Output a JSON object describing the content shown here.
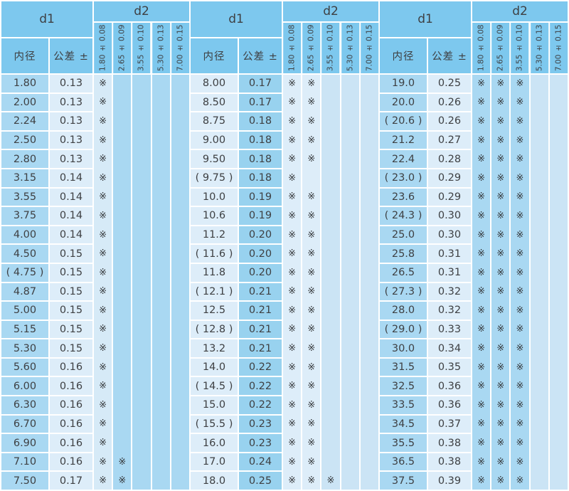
{
  "table": {
    "mark_glyph": "※",
    "header": {
      "d1": "d1",
      "d2": "d2",
      "inner_diameter": "内径",
      "tolerance": "公差 ±"
    },
    "d2_columns": [
      "1.80 ± 0.08",
      "2.65 ± 0.09",
      "3.55 ± 0.10",
      "5.30 ± 0.13",
      "7.00 ± 0.15"
    ],
    "groups": [
      {
        "stripe_shades": [
          "light",
          "medium",
          "medium",
          "medium",
          "medium"
        ],
        "rows": [
          {
            "id": "1.80",
            "tol": "0.13",
            "marks": [
              1,
              0,
              0,
              0,
              0
            ]
          },
          {
            "id": "2.00",
            "tol": "0.13",
            "marks": [
              1,
              0,
              0,
              0,
              0
            ]
          },
          {
            "id": "2.24",
            "tol": "0.13",
            "marks": [
              1,
              0,
              0,
              0,
              0
            ]
          },
          {
            "id": "2.50",
            "tol": "0.13",
            "marks": [
              1,
              0,
              0,
              0,
              0
            ]
          },
          {
            "id": "2.80",
            "tol": "0.13",
            "marks": [
              1,
              0,
              0,
              0,
              0
            ]
          },
          {
            "id": "3.15",
            "tol": "0.14",
            "marks": [
              1,
              0,
              0,
              0,
              0
            ]
          },
          {
            "id": "3.55",
            "tol": "0.14",
            "marks": [
              1,
              0,
              0,
              0,
              0
            ]
          },
          {
            "id": "3.75",
            "tol": "0.14",
            "marks": [
              1,
              0,
              0,
              0,
              0
            ]
          },
          {
            "id": "4.00",
            "tol": "0.14",
            "marks": [
              1,
              0,
              0,
              0,
              0
            ]
          },
          {
            "id": "4.50",
            "tol": "0.15",
            "marks": [
              1,
              0,
              0,
              0,
              0
            ]
          },
          {
            "id": "( 4.75 )",
            "tol": "0.15",
            "marks": [
              1,
              0,
              0,
              0,
              0
            ]
          },
          {
            "id": "4.87",
            "tol": "0.15",
            "marks": [
              1,
              0,
              0,
              0,
              0
            ]
          },
          {
            "id": "5.00",
            "tol": "0.15",
            "marks": [
              1,
              0,
              0,
              0,
              0
            ]
          },
          {
            "id": "5.15",
            "tol": "0.15",
            "marks": [
              1,
              0,
              0,
              0,
              0
            ]
          },
          {
            "id": "5.30",
            "tol": "0.15",
            "marks": [
              1,
              0,
              0,
              0,
              0
            ]
          },
          {
            "id": "5.60",
            "tol": "0.16",
            "marks": [
              1,
              0,
              0,
              0,
              0
            ]
          },
          {
            "id": "6.00",
            "tol": "0.16",
            "marks": [
              1,
              0,
              0,
              0,
              0
            ]
          },
          {
            "id": "6.30",
            "tol": "0.16",
            "marks": [
              1,
              0,
              0,
              0,
              0
            ]
          },
          {
            "id": "6.70",
            "tol": "0.16",
            "marks": [
              1,
              0,
              0,
              0,
              0
            ]
          },
          {
            "id": "6.90",
            "tol": "0.16",
            "marks": [
              1,
              0,
              0,
              0,
              0
            ]
          },
          {
            "id": "7.10",
            "tol": "0.16",
            "marks": [
              1,
              1,
              0,
              0,
              0
            ]
          },
          {
            "id": "7.50",
            "tol": "0.17",
            "marks": [
              1,
              1,
              0,
              0,
              0
            ]
          }
        ]
      },
      {
        "stripe_shades": [
          "xlight",
          "xlight",
          "mlight",
          "mlight",
          "mlight"
        ],
        "rows": [
          {
            "id": "8.00",
            "tol": "0.17",
            "marks": [
              1,
              1,
              0,
              0,
              0
            ]
          },
          {
            "id": "8.50",
            "tol": "0.17",
            "marks": [
              1,
              1,
              0,
              0,
              0
            ]
          },
          {
            "id": "8.75",
            "tol": "0.18",
            "marks": [
              1,
              1,
              0,
              0,
              0
            ]
          },
          {
            "id": "9.00",
            "tol": "0.18",
            "marks": [
              1,
              1,
              0,
              0,
              0
            ]
          },
          {
            "id": "9.50",
            "tol": "0.18",
            "marks": [
              1,
              1,
              0,
              0,
              0
            ]
          },
          {
            "id": "( 9.75 )",
            "tol": "0.18",
            "marks": [
              1,
              0,
              0,
              0,
              0
            ]
          },
          {
            "id": "10.0",
            "tol": "0.19",
            "marks": [
              1,
              1,
              0,
              0,
              0
            ]
          },
          {
            "id": "10.6",
            "tol": "0.19",
            "marks": [
              1,
              1,
              0,
              0,
              0
            ]
          },
          {
            "id": "11.2",
            "tol": "0.20",
            "marks": [
              1,
              1,
              0,
              0,
              0
            ]
          },
          {
            "id": "( 11.6 )",
            "tol": "0.20",
            "marks": [
              1,
              1,
              0,
              0,
              0
            ]
          },
          {
            "id": "11.8",
            "tol": "0.20",
            "marks": [
              1,
              1,
              0,
              0,
              0
            ]
          },
          {
            "id": "( 12.1 )",
            "tol": "0.21",
            "marks": [
              1,
              1,
              0,
              0,
              0
            ]
          },
          {
            "id": "12.5",
            "tol": "0.21",
            "marks": [
              1,
              1,
              0,
              0,
              0
            ]
          },
          {
            "id": "( 12.8 )",
            "tol": "0.21",
            "marks": [
              1,
              1,
              0,
              0,
              0
            ]
          },
          {
            "id": "13.2",
            "tol": "0.21",
            "marks": [
              1,
              1,
              0,
              0,
              0
            ]
          },
          {
            "id": "14.0",
            "tol": "0.22",
            "marks": [
              1,
              1,
              0,
              0,
              0
            ]
          },
          {
            "id": "( 14.5 )",
            "tol": "0.22",
            "marks": [
              1,
              1,
              0,
              0,
              0
            ]
          },
          {
            "id": "15.0",
            "tol": "0.22",
            "marks": [
              1,
              1,
              0,
              0,
              0
            ]
          },
          {
            "id": "( 15.5 )",
            "tol": "0.23",
            "marks": [
              1,
              1,
              0,
              0,
              0
            ]
          },
          {
            "id": "16.0",
            "tol": "0.23",
            "marks": [
              1,
              1,
              0,
              0,
              0
            ]
          },
          {
            "id": "17.0",
            "tol": "0.24",
            "marks": [
              1,
              1,
              0,
              0,
              0
            ]
          },
          {
            "id": "18.0",
            "tol": "0.25",
            "marks": [
              1,
              1,
              1,
              0,
              0
            ]
          }
        ]
      },
      {
        "stripe_shades": [
          "medium",
          "medium",
          "medium",
          "mlight",
          "mlight"
        ],
        "rows": [
          {
            "id": "19.0",
            "tol": "0.25",
            "marks": [
              1,
              1,
              1,
              0,
              0
            ]
          },
          {
            "id": "20.0",
            "tol": "0.26",
            "marks": [
              1,
              1,
              1,
              0,
              0
            ]
          },
          {
            "id": "( 20.6 )",
            "tol": "0.26",
            "marks": [
              1,
              1,
              1,
              0,
              0
            ]
          },
          {
            "id": "21.2",
            "tol": "0.27",
            "marks": [
              1,
              1,
              1,
              0,
              0
            ]
          },
          {
            "id": "22.4",
            "tol": "0.28",
            "marks": [
              1,
              1,
              1,
              0,
              0
            ]
          },
          {
            "id": "( 23.0 )",
            "tol": "0.29",
            "marks": [
              1,
              1,
              1,
              0,
              0
            ]
          },
          {
            "id": "23.6",
            "tol": "0.29",
            "marks": [
              1,
              1,
              1,
              0,
              0
            ]
          },
          {
            "id": "( 24.3 )",
            "tol": "0.30",
            "marks": [
              1,
              1,
              1,
              0,
              0
            ]
          },
          {
            "id": "25.0",
            "tol": "0.30",
            "marks": [
              1,
              1,
              1,
              0,
              0
            ]
          },
          {
            "id": "25.8",
            "tol": "0.31",
            "marks": [
              1,
              1,
              1,
              0,
              0
            ]
          },
          {
            "id": "26.5",
            "tol": "0.31",
            "marks": [
              1,
              1,
              1,
              0,
              0
            ]
          },
          {
            "id": "( 27.3 )",
            "tol": "0.32",
            "marks": [
              1,
              1,
              1,
              0,
              0
            ]
          },
          {
            "id": "28.0",
            "tol": "0.32",
            "marks": [
              1,
              1,
              1,
              0,
              0
            ]
          },
          {
            "id": "( 29.0 )",
            "tol": "0.33",
            "marks": [
              1,
              1,
              1,
              0,
              0
            ]
          },
          {
            "id": "30.0",
            "tol": "0.34",
            "marks": [
              1,
              1,
              1,
              0,
              0
            ]
          },
          {
            "id": "31.5",
            "tol": "0.35",
            "marks": [
              1,
              1,
              1,
              0,
              0
            ]
          },
          {
            "id": "32.5",
            "tol": "0.36",
            "marks": [
              1,
              1,
              1,
              0,
              0
            ]
          },
          {
            "id": "33.5",
            "tol": "0.36",
            "marks": [
              1,
              1,
              1,
              0,
              0
            ]
          },
          {
            "id": "34.5",
            "tol": "0.37",
            "marks": [
              1,
              1,
              1,
              0,
              0
            ]
          },
          {
            "id": "35.5",
            "tol": "0.38",
            "marks": [
              1,
              1,
              1,
              0,
              0
            ]
          },
          {
            "id": "36.5",
            "tol": "0.38",
            "marks": [
              1,
              1,
              1,
              0,
              0
            ]
          },
          {
            "id": "37.5",
            "tol": "0.39",
            "marks": [
              1,
              1,
              1,
              0,
              0
            ]
          }
        ]
      }
    ]
  },
  "colors": {
    "header_blue": "#7dc8ee",
    "cell_medium_blue": "#a9d8f2",
    "cell_light_blue": "#ddedf9",
    "cell_mid_light_blue": "#cbe4f5",
    "tolerance_saturated_blue": "#98d2ef",
    "grid_line": "#ffffff",
    "text": "#3e4043"
  }
}
